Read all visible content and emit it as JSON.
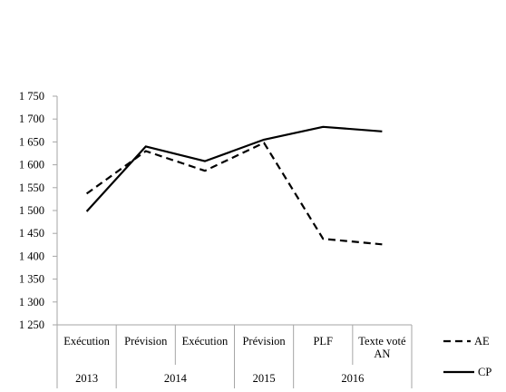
{
  "chart_data": {
    "type": "line",
    "title": "",
    "xlabel": "",
    "ylabel": "",
    "ylim": [
      1250,
      1750
    ],
    "yticks": [
      1250,
      1300,
      1350,
      1400,
      1450,
      1500,
      1550,
      1600,
      1650,
      1700,
      1750
    ],
    "ytick_labels": [
      "1 250",
      "1 300",
      "1 350",
      "1 400",
      "1 450",
      "1 500",
      "1 550",
      "1 600",
      "1 650",
      "1 700",
      "1 750"
    ],
    "categories": [
      [
        "Exécution"
      ],
      [
        "Prévision"
      ],
      [
        "Exécution"
      ],
      [
        "Prévision"
      ],
      [
        "PLF"
      ],
      [
        "Texte voté",
        "AN"
      ]
    ],
    "groups": [
      {
        "label": "2013",
        "span": 1
      },
      {
        "label": "2014",
        "span": 2
      },
      {
        "label": "2015",
        "span": 1
      },
      {
        "label": "2016",
        "span": 2
      }
    ],
    "series": [
      {
        "name": "AE",
        "style": "dashed",
        "color": "#000000",
        "values": [
          1537,
          1630,
          1587,
          1648,
          1438,
          1426
        ]
      },
      {
        "name": "CP",
        "style": "solid",
        "color": "#000000",
        "values": [
          1498,
          1640,
          1608,
          1655,
          1683,
          1673
        ]
      }
    ],
    "grid": false,
    "legend": "right"
  }
}
